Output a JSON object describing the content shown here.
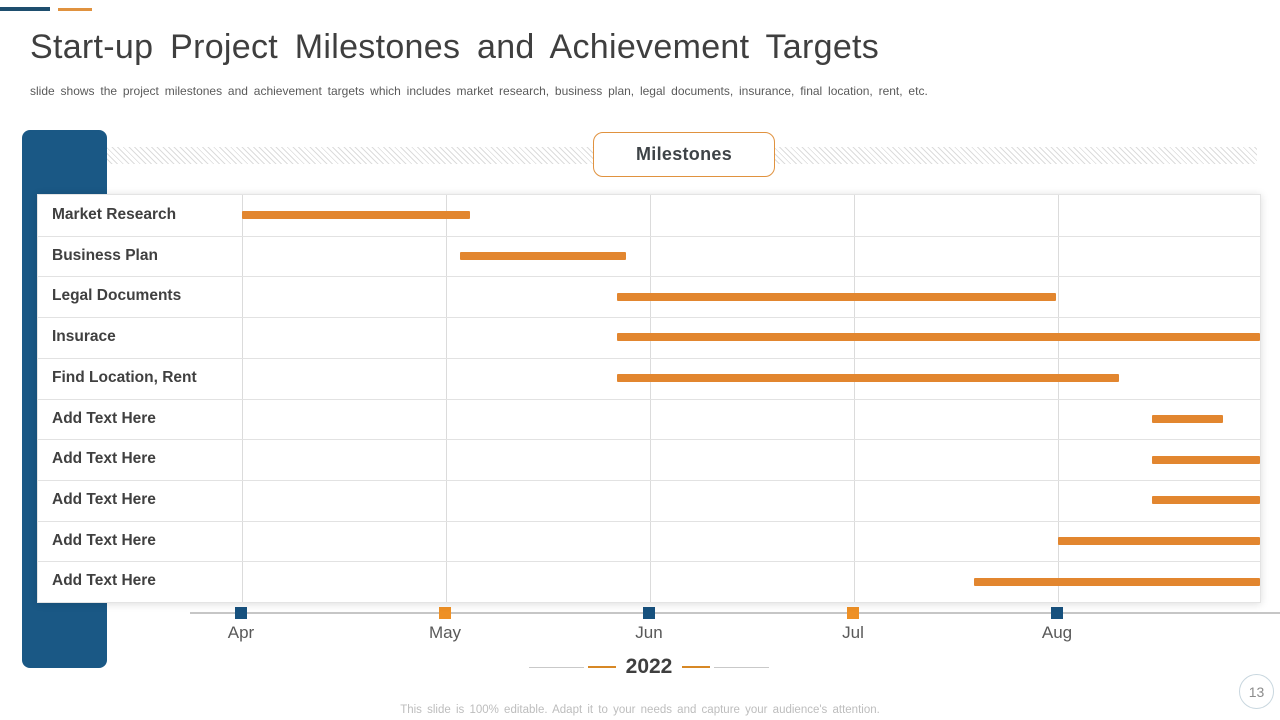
{
  "slide": {
    "title": "Start-up Project Milestones and Achievement Targets",
    "subtitle": "slide shows the project milestones and achievement targets which includes market research, business plan, legal documents, insurance, final location, rent, etc.",
    "header_label": "Milestones",
    "year_label": "2022",
    "footer": "This slide is 100% editable. Adapt it to your needs and capture your audience's attention.",
    "page_number": "13"
  },
  "colors": {
    "blue_shape": "#1A5885",
    "accent_blue": "#1E4E6E",
    "accent_orange": "#E0923F",
    "bar_orange": "#E2862F"
  },
  "chart_data": {
    "type": "gantt",
    "title": "Milestones",
    "year": "2022",
    "x_axis": {
      "unit": "months",
      "labels": [
        "Apr",
        "May",
        "Jun",
        "Jul",
        "Aug"
      ],
      "marker_colors": [
        "#17517E",
        "#EE9025",
        "#17517E",
        "#EE9025",
        "#17517E"
      ],
      "range_months": [
        0,
        4.99
      ],
      "gridlines": true
    },
    "bar_color": "#E2862F",
    "tasks": [
      {
        "label": "Market Research",
        "start": 0.0,
        "end": 1.12
      },
      {
        "label": "Business Plan",
        "start": 1.07,
        "end": 1.88
      },
      {
        "label": "Legal Documents",
        "start": 1.84,
        "end": 3.99
      },
      {
        "label": "Insurace",
        "start": 1.84,
        "end": 4.99
      },
      {
        "label": "Find Location, Rent",
        "start": 1.84,
        "end": 4.3
      },
      {
        "label": "Add Text Here",
        "start": 4.46,
        "end": 4.81
      },
      {
        "label": "Add Text Here",
        "start": 4.46,
        "end": 4.99
      },
      {
        "label": "Add Text Here",
        "start": 4.46,
        "end": 4.99
      },
      {
        "label": "Add Text Here",
        "start": 4.0,
        "end": 4.99
      },
      {
        "label": "Add Text Here",
        "start": 3.59,
        "end": 4.99
      }
    ]
  }
}
